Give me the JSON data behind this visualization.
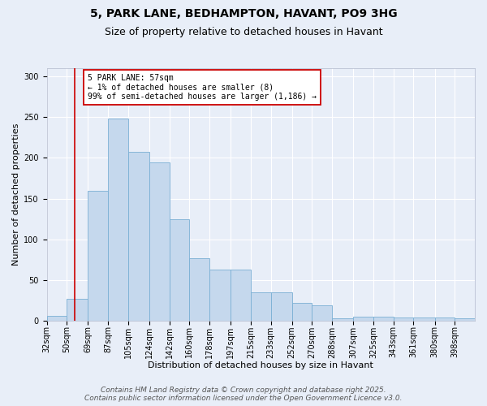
{
  "title_line1": "5, PARK LANE, BEDHAMPTON, HAVANT, PO9 3HG",
  "title_line2": "Size of property relative to detached houses in Havant",
  "xlabel": "Distribution of detached houses by size in Havant",
  "ylabel": "Number of detached properties",
  "bin_edges": [
    32,
    50,
    69,
    87,
    105,
    124,
    142,
    160,
    178,
    197,
    215,
    233,
    252,
    270,
    288,
    307,
    325,
    343,
    361,
    380,
    398
  ],
  "bin_labels": [
    "32sqm",
    "50sqm",
    "69sqm",
    "87sqm",
    "105sqm",
    "124sqm",
    "142sqm",
    "160sqm",
    "178sqm",
    "197sqm",
    "215sqm",
    "233sqm",
    "252sqm",
    "270sqm",
    "288sqm",
    "307sqm",
    "325sqm",
    "343sqm",
    "361sqm",
    "380sqm",
    "398sqm"
  ],
  "bar_heights": [
    6,
    27,
    160,
    248,
    207,
    194,
    125,
    77,
    63,
    63,
    35,
    35,
    22,
    19,
    3,
    5,
    5,
    4,
    4,
    4,
    3
  ],
  "bar_color": "#c5d8ed",
  "bar_edge_color": "#7aafd4",
  "background_color": "#e8eef8",
  "vline_x": 57,
  "vline_color": "#cc0000",
  "annotation_text": "5 PARK LANE: 57sqm\n← 1% of detached houses are smaller (8)\n99% of semi-detached houses are larger (1,186) →",
  "annotation_box_color": "#ffffff",
  "annotation_box_edge": "#cc0000",
  "ylim": [
    0,
    310
  ],
  "yticks": [
    0,
    50,
    100,
    150,
    200,
    250,
    300
  ],
  "footer_text": "Contains HM Land Registry data © Crown copyright and database right 2025.\nContains public sector information licensed under the Open Government Licence v3.0.",
  "grid_color": "#ffffff",
  "title_fontsize": 10,
  "subtitle_fontsize": 9,
  "axis_fontsize": 8,
  "tick_fontsize": 7,
  "footer_fontsize": 6.5
}
